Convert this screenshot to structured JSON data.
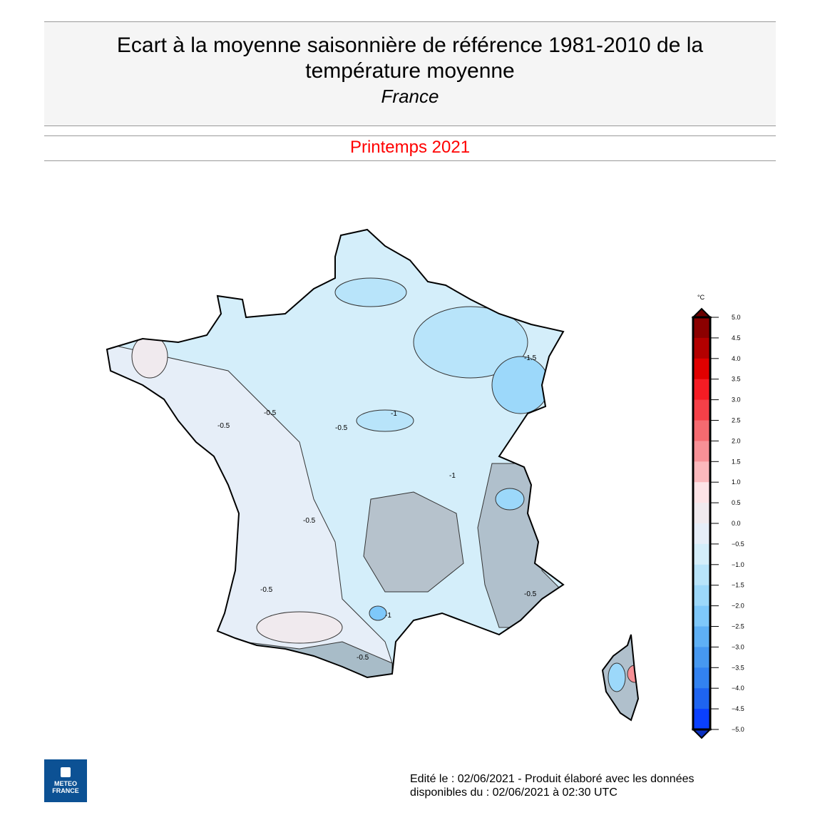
{
  "header": {
    "title_line1": "Ecart à la moyenne saisonnière de référence 1981-2010 de la",
    "title_line2": "température moyenne",
    "subtitle": "France"
  },
  "season": "Printemps 2021",
  "legend": {
    "unit": "°C",
    "ticks": [
      "5.0",
      "4.5",
      "4.0",
      "3.5",
      "3.0",
      "2.5",
      "2.0",
      "1.5",
      "1.0",
      "0.5",
      "0.0",
      "−0.5",
      "−1.0",
      "−1.5",
      "−2.0",
      "−2.5",
      "−3.0",
      "−3.5",
      "−4.0",
      "−4.5",
      "−5.0"
    ],
    "colors": [
      "#8b0000",
      "#b30000",
      "#e00000",
      "#f51c24",
      "#f54048",
      "#f56a70",
      "#f79096",
      "#fbb8bc",
      "#fde3e6",
      "#f0eaee",
      "#e6eef8",
      "#d4eefa",
      "#b8e4fa",
      "#9cd8fa",
      "#7ec8fa",
      "#5eb0f5",
      "#4698f0",
      "#3282f0",
      "#1e64f0",
      "#0a40ff"
    ]
  },
  "contour_labels": [
    "-0.5",
    "-0.5",
    "-0.5",
    "-0.5",
    "-1",
    "-1",
    "-0.5",
    "-1.5",
    "-1",
    "-0.5",
    "-0.5"
  ],
  "footer": {
    "line1": "Edité le : 02/06/2021 - Produit élaboré avec les données",
    "line2": "disponibles du : 02/06/2021 à 02:30 UTC"
  },
  "logo": {
    "line1": "METEO",
    "line2": "FRANCE"
  }
}
